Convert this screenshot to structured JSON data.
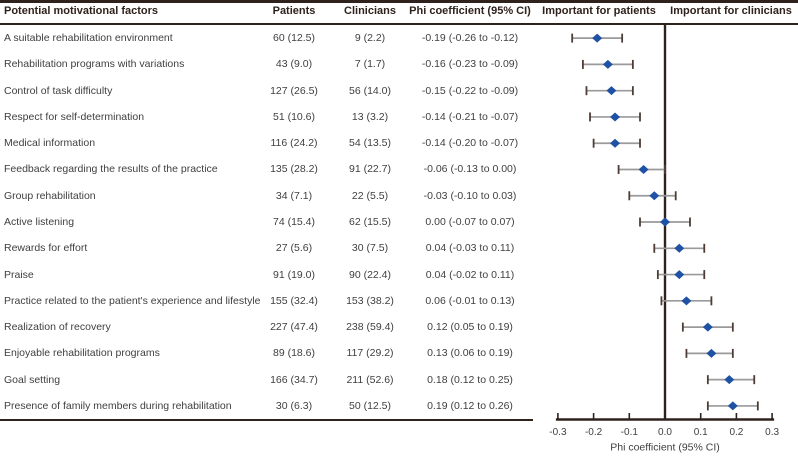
{
  "table": {
    "columns": [
      "Potential motivational factors",
      "Patients",
      "Clinicians",
      "Phi coefficient (95% CI)"
    ]
  },
  "plot_headers": {
    "left": "Important for patients",
    "right": "Important for clinicians"
  },
  "colors": {
    "marker_blue": "#1f52a5",
    "rule_dark": "#2f211b",
    "errorbar_line": "#9a9a9a",
    "errorbar_cap": "#4d3d34",
    "body_text": "#3f3f3f"
  },
  "chart_data": {
    "type": "scatter",
    "subtype": "forest-plot",
    "title": "",
    "xlabel": "Phi coefficient (95% CI)",
    "ylabel": "",
    "xlim": [
      -0.3,
      0.3
    ],
    "xticks": [
      -0.3,
      -0.2,
      -0.1,
      0.0,
      0.1,
      0.2,
      0.3
    ],
    "xtick_labels": [
      "-0.3",
      "-0.2",
      "-0.1",
      "0.0",
      "0.1",
      "0.2",
      "0.3"
    ],
    "grid": false,
    "legend_position": "top",
    "legend_headers": [
      "Important for patients",
      "Important for clinicians"
    ],
    "rows": [
      {
        "factor": "A suitable rehabilitation environment",
        "patients": "60 (12.5)",
        "clinicians": "9 (2.2)",
        "ci_text": "-0.19 (-0.26 to -0.12)",
        "phi": -0.19,
        "lo": -0.26,
        "hi": -0.12
      },
      {
        "factor": "Rehabilitation programs with variations",
        "patients": "43 (9.0)",
        "clinicians": "7 (1.7)",
        "ci_text": "-0.16 (-0.23 to -0.09)",
        "phi": -0.16,
        "lo": -0.23,
        "hi": -0.09
      },
      {
        "factor": "Control of task difficulty",
        "patients": "127 (26.5)",
        "clinicians": "56 (14.0)",
        "ci_text": "-0.15 (-0.22 to -0.09)",
        "phi": -0.15,
        "lo": -0.22,
        "hi": -0.09
      },
      {
        "factor": "Respect for self-determination",
        "patients": "51 (10.6)",
        "clinicians": "13 (3.2)",
        "ci_text": "-0.14 (-0.21 to -0.07)",
        "phi": -0.14,
        "lo": -0.21,
        "hi": -0.07
      },
      {
        "factor": "Medical information",
        "patients": "116 (24.2)",
        "clinicians": "54 (13.5)",
        "ci_text": "-0.14 (-0.20 to -0.07)",
        "phi": -0.14,
        "lo": -0.2,
        "hi": -0.07
      },
      {
        "factor": "Feedback regarding the results of the practice",
        "patients": "135 (28.2)",
        "clinicians": "91 (22.7)",
        "ci_text": "-0.06 (-0.13 to 0.00)",
        "phi": -0.06,
        "lo": -0.13,
        "hi": 0.0
      },
      {
        "factor": "Group rehabilitation",
        "patients": "34 (7.1)",
        "clinicians": "22 (5.5)",
        "ci_text": "-0.03 (-0.10 to 0.03)",
        "phi": -0.03,
        "lo": -0.1,
        "hi": 0.03
      },
      {
        "factor": "Active listening",
        "patients": "74 (15.4)",
        "clinicians": "62 (15.5)",
        "ci_text": "0.00 (-0.07 to 0.07)",
        "phi": 0.0,
        "lo": -0.07,
        "hi": 0.07
      },
      {
        "factor": "Rewards for effort",
        "patients": "27 (5.6)",
        "clinicians": "30 (7.5)",
        "ci_text": "0.04 (-0.03 to 0.11)",
        "phi": 0.04,
        "lo": -0.03,
        "hi": 0.11
      },
      {
        "factor": "Praise",
        "patients": "91 (19.0)",
        "clinicians": "90 (22.4)",
        "ci_text": "0.04 (-0.02 to 0.11)",
        "phi": 0.04,
        "lo": -0.02,
        "hi": 0.11
      },
      {
        "factor": "Practice related to the patient's experience and lifestyle",
        "patients": "155 (32.4)",
        "clinicians": "153 (38.2)",
        "ci_text": "0.06 (-0.01 to 0.13)",
        "phi": 0.06,
        "lo": -0.01,
        "hi": 0.13
      },
      {
        "factor": "Realization of recovery",
        "patients": "227 (47.4)",
        "clinicians": "238 (59.4)",
        "ci_text": "0.12 (0.05 to 0.19)",
        "phi": 0.12,
        "lo": 0.05,
        "hi": 0.19
      },
      {
        "factor": "Enjoyable rehabilitation programs",
        "patients": "89 (18.6)",
        "clinicians": "117 (29.2)",
        "ci_text": "0.13 (0.06 to 0.19)",
        "phi": 0.13,
        "lo": 0.06,
        "hi": 0.19
      },
      {
        "factor": "Goal setting",
        "patients": "166 (34.7)",
        "clinicians": "211 (52.6)",
        "ci_text": "0.18 (0.12 to 0.25)",
        "phi": 0.18,
        "lo": 0.12,
        "hi": 0.25
      },
      {
        "factor": "Presence of family members during rehabilitation",
        "patients": "30 (6.3)",
        "clinicians": "50 (12.5)",
        "ci_text": "0.19 (0.12 to 0.26)",
        "phi": 0.19,
        "lo": 0.12,
        "hi": 0.26
      }
    ]
  }
}
